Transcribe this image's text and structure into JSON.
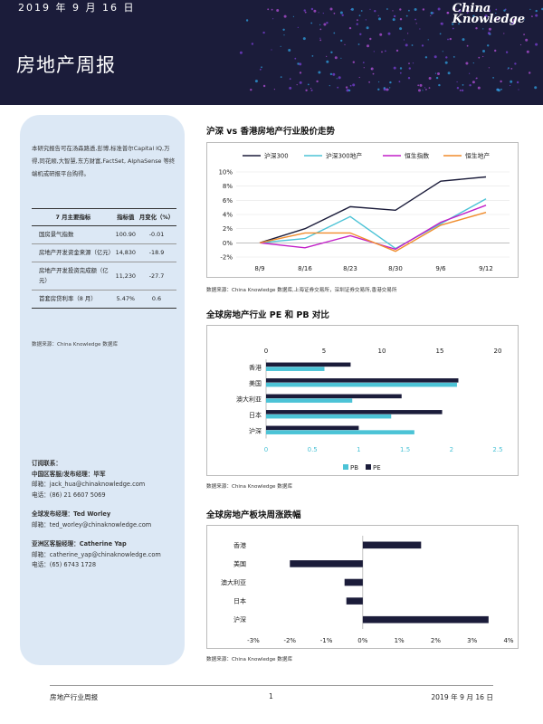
{
  "header": {
    "date": "2019 年 9 月 16 日",
    "title": "房地产周报",
    "brand_line1": "China",
    "brand_line2": "Knowledge"
  },
  "sidebar": {
    "intro": "本研究报告可在汤森路透,彭博,标准普尔Capital IQ,万得,同花顺,大智慧,东方财富,FactSet, AlphaSense 等终端机或研报平台购得。",
    "table": {
      "headers": [
        "7 月主要指标",
        "指标值",
        "月变化（%）"
      ],
      "rows": [
        [
          "国房景气指数",
          "100.90",
          "-0.01"
        ],
        [
          "房地产开发资金来源（亿元）",
          "14,830",
          "-18.9"
        ],
        [
          "房地产开发投资完成额（亿元）",
          "11,230",
          "-27.7"
        ],
        [
          "首套房贷利率（8 月）",
          "5.47%",
          "0.6"
        ]
      ]
    },
    "source": "数据来源：China Knowledge 数据库",
    "contacts": [
      {
        "head": "订阅联系：",
        "lines": []
      },
      {
        "head": "中国区客服/发布经理：毕军",
        "lines": [
          "邮箱：jack_hua@chinaknowledge.com",
          "电话：(86) 21 6607 5069"
        ]
      },
      {
        "head": "全球发布经理：Ted Worley",
        "lines": [
          "邮箱：ted_worley@chinaknowledge.com"
        ]
      },
      {
        "head": "亚洲区客服经理：Catherine Yap",
        "lines": [
          "邮箱：catherine_yap@chinaknowledge.com",
          "电话：(65) 6743 1728"
        ]
      }
    ]
  },
  "sections": {
    "line_title": "沪深  vs  香港房地产行业股价走势",
    "line_source": "数据来源：China Knowledge 数据库,上海证券交易所，深圳证券交易所,香港交易所",
    "pe_title": "全球房地产行业  PE  和  PB  对比",
    "pe_source": "数据来源：China Knowledge 数据库",
    "weekly_title": "全球房地产板块周涨跌幅",
    "weekly_source": "数据来源：China Knowledge 数据库"
  },
  "footer": {
    "left": "房地产行业周报",
    "page": "1",
    "right": "2019 年 9 月 16 日"
  },
  "chart_data": [
    {
      "type": "line",
      "x": [
        "8/9",
        "8/16",
        "8/23",
        "8/30",
        "9/6",
        "9/12"
      ],
      "ylim": [
        -2,
        10
      ],
      "yticks": [
        "-2%",
        "0%",
        "2%",
        "4%",
        "6%",
        "8%",
        "10%"
      ],
      "legend": "top",
      "series": [
        {
          "name": "沪深300",
          "color": "#1b1c3a",
          "values": [
            0,
            2.0,
            5.1,
            4.6,
            8.7,
            9.3
          ]
        },
        {
          "name": "沪深300地产",
          "color": "#4cc3d6",
          "values": [
            0,
            0.6,
            3.7,
            -0.8,
            2.7,
            6.2
          ]
        },
        {
          "name": "恒生指数",
          "color": "#c21fc8",
          "values": [
            0,
            -0.7,
            1.0,
            -0.9,
            2.9,
            5.3
          ]
        },
        {
          "name": "恒生地产",
          "color": "#f08c2c",
          "values": [
            0,
            1.4,
            1.4,
            -1.2,
            2.5,
            4.3
          ]
        }
      ]
    },
    {
      "type": "bar",
      "categories": [
        "香港",
        "美国",
        "澳大利亚",
        "日本",
        "沪深"
      ],
      "pe_axis": [
        0,
        5,
        10,
        15,
        20
      ],
      "pb_axis": [
        "0",
        "0.5",
        "1",
        "1.5",
        "2",
        "2.5"
      ],
      "legend": "bottom",
      "series": [
        {
          "name": "PB",
          "color": "#4cc3d6",
          "axis": "bottom",
          "values": [
            0.63,
            2.06,
            0.93,
            1.35,
            1.6
          ]
        },
        {
          "name": "PE",
          "color": "#1b1c3a",
          "axis": "top",
          "values": [
            7.3,
            16.6,
            11.7,
            15.2,
            8.0
          ]
        }
      ]
    },
    {
      "type": "bar",
      "categories": [
        "香港",
        "美国",
        "澳大利亚",
        "日本",
        "沪深"
      ],
      "xticks": [
        "-3%",
        "-2%",
        "-1%",
        "0%",
        "1%",
        "2%",
        "3%",
        "4%"
      ],
      "xlim": [
        -3,
        4
      ],
      "series": [
        {
          "color": "#1b1c3a",
          "values": [
            1.6,
            -2.0,
            -0.5,
            -0.45,
            3.45
          ]
        }
      ]
    }
  ]
}
